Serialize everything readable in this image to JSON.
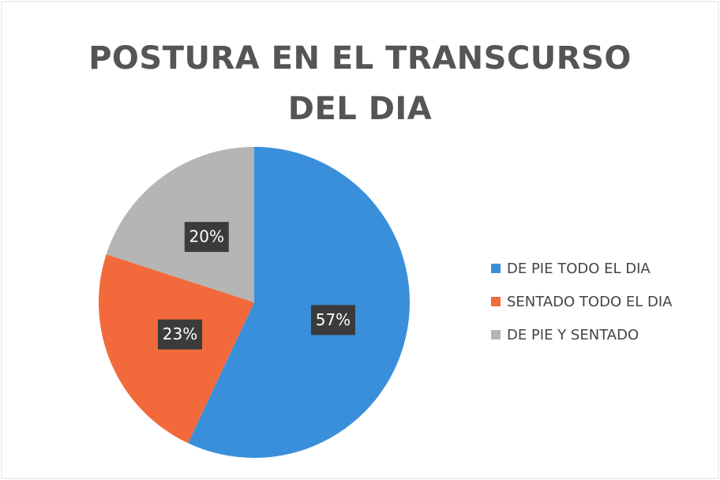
{
  "chart_data": {
    "type": "pie",
    "title": "POSTURA EN EL TRANSCURSO DEL DIA",
    "categories": [
      "DE PIE TODO EL DIA",
      "SENTADO TODO EL DIA",
      "DE PIE Y SENTADO"
    ],
    "values": [
      57,
      23,
      20
    ],
    "value_labels": [
      "57%",
      "23%",
      "20%"
    ],
    "colors": [
      "#3a8fdb",
      "#f26a3b",
      "#b5b5b5"
    ],
    "legend": "right"
  }
}
